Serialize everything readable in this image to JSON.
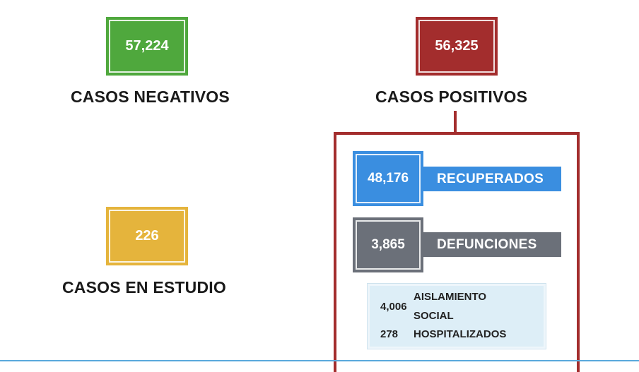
{
  "negativos": {
    "value": "57,224",
    "label": "CASOS NEGATIVOS",
    "color": "#4fa83d"
  },
  "positivos": {
    "value": "56,325",
    "label": "CASOS POSITIVOS",
    "color": "#a32d2d"
  },
  "estudio": {
    "value": "226",
    "label": "CASOS EN ESTUDIO",
    "color": "#e5b43c"
  },
  "recuperados": {
    "value": "48,176",
    "label": "RECUPERADOS",
    "color": "#3a8ee0"
  },
  "defunciones": {
    "value": "3,865",
    "label": "DEFUNCIONES",
    "color": "#6b7079"
  },
  "aislamiento": {
    "value": "4,006",
    "label_line1": "AISLAMIENTO",
    "label_line2": "SOCIAL"
  },
  "hospitalizados": {
    "value": "278",
    "label": "HOSPITALIZADOS"
  }
}
